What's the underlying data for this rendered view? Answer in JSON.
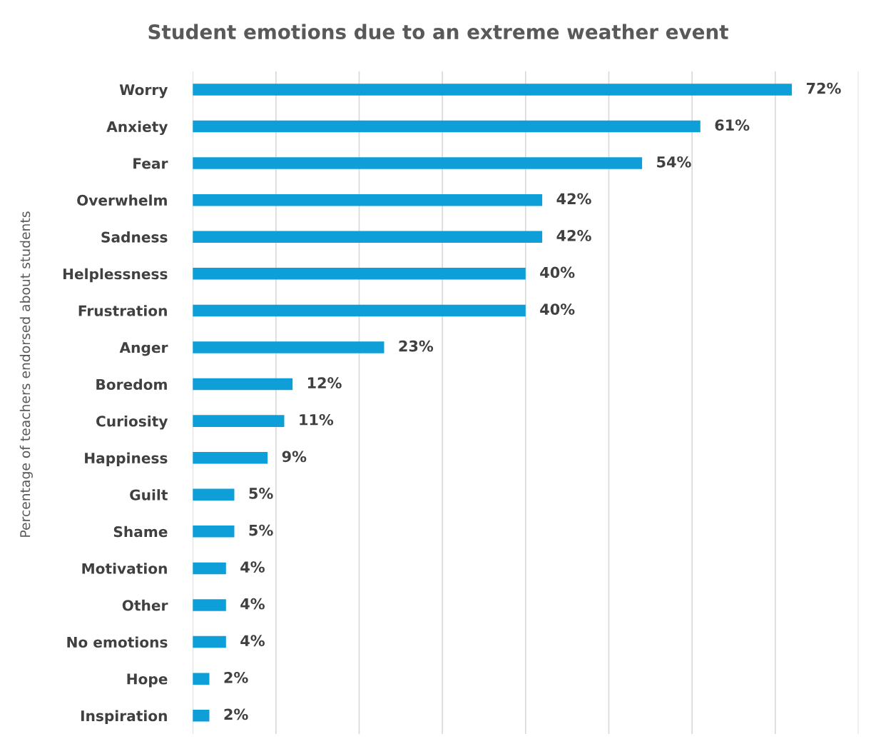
{
  "chart_data": {
    "type": "bar",
    "orientation": "horizontal",
    "title": "Student emotions due to an extreme weather event",
    "ylabel": "Percentage of teachers endorsed about students",
    "categories": [
      "Worry",
      "Anxiety",
      "Fear",
      "Overwhelm",
      "Sadness",
      "Helplessness",
      "Frustration",
      "Anger",
      "Boredom",
      "Curiosity",
      "Happiness",
      "Guilt",
      "Shame",
      "Motivation",
      "Other",
      "No emotions",
      "Hope",
      "Inspiration"
    ],
    "values": [
      72,
      61,
      54,
      42,
      42,
      40,
      40,
      23,
      12,
      11,
      9,
      5,
      5,
      4,
      4,
      4,
      2,
      2
    ],
    "value_labels": [
      "72%",
      "61%",
      "54%",
      "42%",
      "42%",
      "40%",
      "40%",
      "23%",
      "12%",
      "11%",
      "9%",
      "5%",
      "5%",
      "4%",
      "4%",
      "4%",
      "2%",
      "2%"
    ],
    "color": "#0f9fd8",
    "xlim": [
      0,
      80
    ],
    "xticks": [
      {
        "value": 0,
        "label": null
      },
      {
        "value": 10,
        "label": null
      },
      {
        "value": 20,
        "label": null
      },
      {
        "value": 30,
        "label": null
      },
      {
        "value": 40,
        "label": null
      },
      {
        "value": 50,
        "label": null
      },
      {
        "value": 60,
        "label": null
      },
      {
        "value": 70,
        "label": null
      },
      {
        "value": 80,
        "label": null
      }
    ],
    "grid": "x",
    "tick_labels": "y",
    "legend": false
  }
}
